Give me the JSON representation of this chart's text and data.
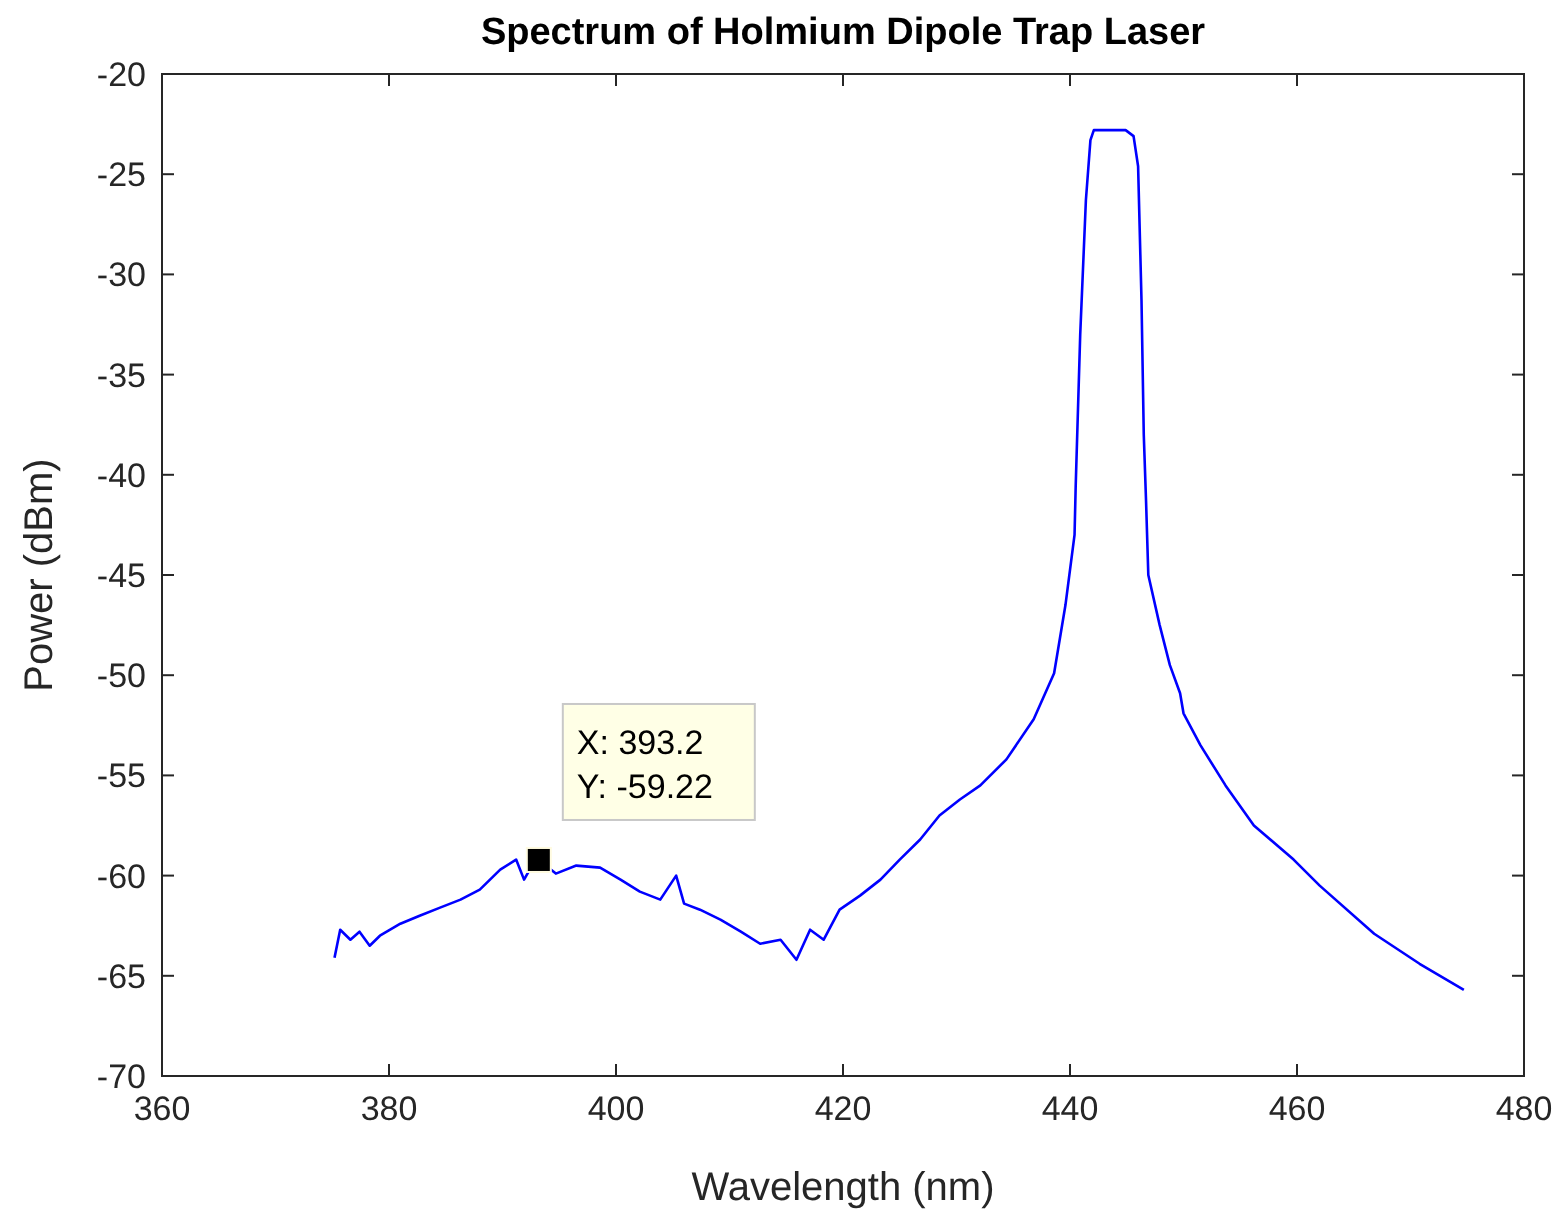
{
  "chart_data": {
    "type": "line",
    "title": "Spectrum of Holmium Dipole Trap Laser",
    "xlabel": "Wavelength (nm)",
    "ylabel": "Power (dBm)",
    "xlim": [
      360,
      480
    ],
    "xticks": [
      360,
      380,
      400,
      420,
      440,
      460,
      480
    ],
    "ylim": [
      -70,
      -20
    ],
    "yticks": [
      -70,
      -65,
      -60,
      -55,
      -50,
      -45,
      -40,
      -35,
      -30,
      -25,
      -20
    ],
    "grid": false,
    "marker": "none",
    "line_style": "solid",
    "annotations": [
      {
        "text": "X: 393.2\nY: -59.22",
        "x": 393.2,
        "y": -59.22
      }
    ],
    "series": [
      {
        "color": "#0000ff",
        "x": [
          375.2,
          375.7,
          376.6,
          377.4,
          378.3,
          379.2,
          381.0,
          382.7,
          384.5,
          386.3,
          388.0,
          389.8,
          391.2,
          391.9,
          392.6,
          393.2,
          394.7,
          396.5,
          398.6,
          400.4,
          402.1,
          403.9,
          405.3,
          406.0,
          407.4,
          409.2,
          411.0,
          412.7,
          414.5,
          415.9,
          417.1,
          418.3,
          419.7,
          421.5,
          423.3,
          425.0,
          426.8,
          428.5,
          430.3,
          432.1,
          434.4,
          436.8,
          438.6,
          439.6,
          440.4,
          440.5,
          440.9,
          441.4,
          441.8,
          442.1,
          444.9,
          445.6,
          446.0,
          446.3,
          446.5,
          446.7,
          446.9,
          447.9,
          448.8,
          449.7,
          450.0,
          451.5,
          453.7,
          456.2,
          459.7,
          462.0,
          466.8,
          470.8,
          474.7
        ],
        "values": [
          -64.1,
          -62.7,
          -63.2,
          -62.8,
          -63.5,
          -63.0,
          -62.4,
          -62.0,
          -61.6,
          -61.2,
          -60.7,
          -59.7,
          -59.2,
          -60.2,
          -59.5,
          -59.22,
          -59.9,
          -59.5,
          -59.6,
          -60.2,
          -60.8,
          -61.2,
          -60.0,
          -61.4,
          -61.7,
          -62.2,
          -62.8,
          -63.4,
          -63.2,
          -64.2,
          -62.7,
          -63.2,
          -61.7,
          -61.0,
          -60.2,
          -59.2,
          -58.2,
          -57.0,
          -56.2,
          -55.5,
          -54.2,
          -52.2,
          -49.9,
          -46.5,
          -43.0,
          -40.6,
          -33.0,
          -26.3,
          -23.3,
          -22.8,
          -22.8,
          -23.1,
          -24.6,
          -31.3,
          -38.0,
          -41.3,
          -45.0,
          -47.5,
          -49.5,
          -50.9,
          -51.9,
          -53.5,
          -55.5,
          -57.5,
          -59.2,
          -60.5,
          -62.9,
          -64.4,
          -65.7
        ]
      }
    ]
  }
}
